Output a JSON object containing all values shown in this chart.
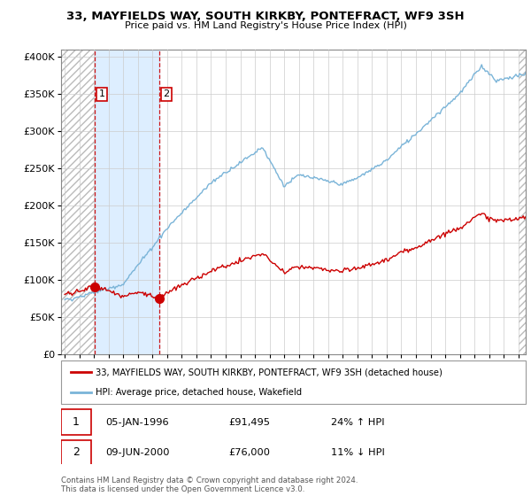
{
  "title": "33, MAYFIELDS WAY, SOUTH KIRKBY, PONTEFRACT, WF9 3SH",
  "subtitle": "Price paid vs. HM Land Registry's House Price Index (HPI)",
  "ylabel_values": [
    "£0",
    "£50K",
    "£100K",
    "£150K",
    "£200K",
    "£250K",
    "£300K",
    "£350K",
    "£400K"
  ],
  "yticks": [
    0,
    50000,
    100000,
    150000,
    200000,
    250000,
    300000,
    350000,
    400000
  ],
  "ylim": [
    0,
    410000
  ],
  "xlim_start": 1993.75,
  "xlim_end": 2025.5,
  "sale1_x": 1996.03,
  "sale1_y": 91495,
  "sale2_x": 2000.44,
  "sale2_y": 76000,
  "hpi_color": "#7ab4d8",
  "price_color": "#cc0000",
  "dashed_color": "#cc0000",
  "blue_region_color": "#ddeeff",
  "legend_label1": "33, MAYFIELDS WAY, SOUTH KIRKBY, PONTEFRACT, WF9 3SH (detached house)",
  "legend_label2": "HPI: Average price, detached house, Wakefield",
  "footer": "Contains HM Land Registry data © Crown copyright and database right 2024.\nThis data is licensed under the Open Government Licence v3.0.",
  "table_rows": [
    [
      "1",
      "05-JAN-1996",
      "£91,495",
      "24% ↑ HPI"
    ],
    [
      "2",
      "09-JUN-2000",
      "£76,000",
      "11% ↓ HPI"
    ]
  ]
}
